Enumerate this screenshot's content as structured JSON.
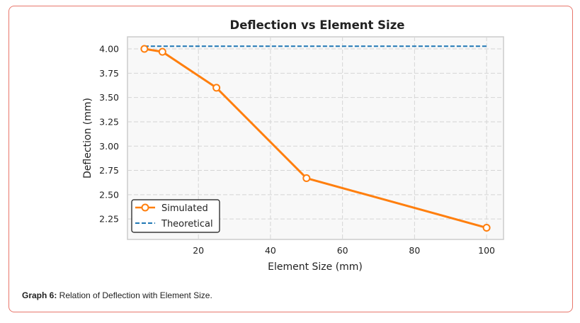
{
  "chart_data": {
    "type": "line",
    "title": "Deflection vs Element Size",
    "xlabel": "Element Size (mm)",
    "ylabel": "Deflection (mm)",
    "xlim": [
      0.3,
      104.7
    ],
    "ylim": [
      2.04,
      4.124
    ],
    "xticks": [
      20,
      40,
      60,
      80,
      100
    ],
    "yticks": [
      2.25,
      2.5,
      2.75,
      3.0,
      3.25,
      3.5,
      3.75,
      4.0
    ],
    "xtick_labels": [
      "20",
      "40",
      "60",
      "80",
      "100"
    ],
    "ytick_labels": [
      "2.25",
      "2.50",
      "2.75",
      "3.00",
      "3.25",
      "3.50",
      "3.75",
      "4.00"
    ],
    "grid": true,
    "legend_position": "lower-left",
    "series": [
      {
        "name": "Simulated",
        "color": "#ff7f0e",
        "style": "solid-marker",
        "x": [
          5,
          10,
          25,
          50,
          100
        ],
        "y": [
          4.0,
          3.97,
          3.6,
          2.67,
          2.16
        ]
      },
      {
        "name": "Theoretical",
        "color": "#1f77b4",
        "style": "dashed",
        "x": [
          5,
          100
        ],
        "y": [
          4.027,
          4.027
        ]
      }
    ]
  },
  "caption": {
    "label": "Graph 6:",
    "text": " Relation of Deflection with Element Size."
  }
}
